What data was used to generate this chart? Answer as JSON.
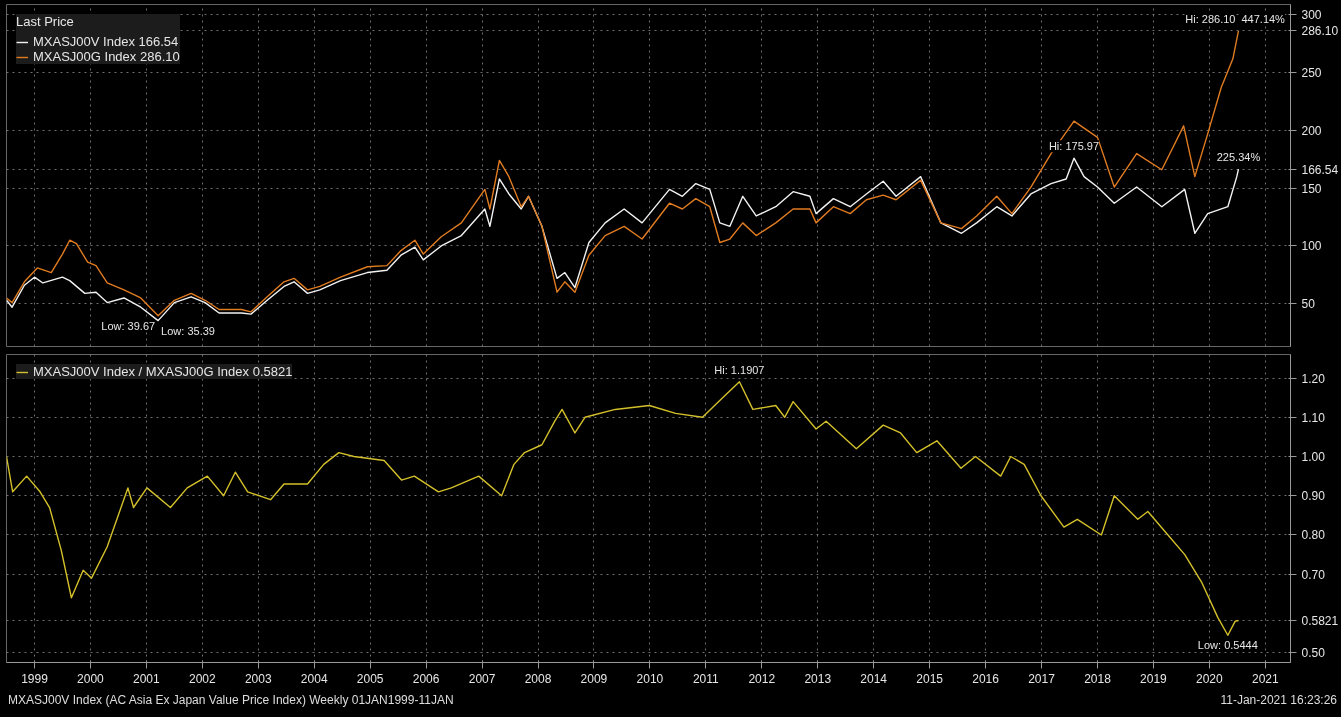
{
  "chart_data": [
    {
      "type": "line",
      "legend_title": "Last Price",
      "legend": "top left",
      "grid": true,
      "tick_labels": "y",
      "xlim": [
        1999.0,
        2021.95
      ],
      "xticks": [
        {
          "value": 1999.5,
          "label": null
        },
        {
          "value": 2000.5,
          "label": null
        },
        {
          "value": 2001.5,
          "label": null
        },
        {
          "value": 2002.5,
          "label": null
        },
        {
          "value": 2003.5,
          "label": null
        },
        {
          "value": 2004.5,
          "label": null
        },
        {
          "value": 2005.5,
          "label": null
        },
        {
          "value": 2006.5,
          "label": null
        },
        {
          "value": 2007.5,
          "label": null
        },
        {
          "value": 2008.5,
          "label": null
        },
        {
          "value": 2009.5,
          "label": null
        },
        {
          "value": 2010.5,
          "label": null
        },
        {
          "value": 2011.5,
          "label": null
        },
        {
          "value": 2012.5,
          "label": null
        },
        {
          "value": 2013.5,
          "label": null
        },
        {
          "value": 2014.5,
          "label": null
        },
        {
          "value": 2015.5,
          "label": null
        },
        {
          "value": 2016.5,
          "label": null
        },
        {
          "value": 2017.5,
          "label": null
        },
        {
          "value": 2018.5,
          "label": null
        },
        {
          "value": 2019.5,
          "label": null
        },
        {
          "value": 2020.5,
          "label": null
        },
        {
          "value": 2021.5,
          "label": null
        }
      ],
      "ylim": [
        13,
        309
      ],
      "yticks": [
        50,
        100,
        150,
        {
          "value": 166.54,
          "label": "166.54"
        },
        200,
        250,
        {
          "value": 286.1,
          "label": "286.10"
        },
        300
      ],
      "series": [
        {
          "name": "MXASJ00V Index 166.54",
          "color": "#f2f2f2",
          "x": [
            1999.0,
            1999.1,
            1999.32,
            1999.5,
            1999.65,
            2000.0,
            2000.13,
            2000.4,
            2000.6,
            2000.8,
            2001.1,
            2001.4,
            2001.71,
            2002.0,
            2002.3,
            2002.55,
            2002.8,
            2003.2,
            2003.37,
            2003.66,
            2003.96,
            2004.14,
            2004.38,
            2004.6,
            2004.97,
            2005.45,
            2005.8,
            2006.05,
            2006.3,
            2006.45,
            2006.77,
            2007.13,
            2007.55,
            2007.64,
            2007.81,
            2007.98,
            2008.2,
            2008.33,
            2008.57,
            2008.84,
            2008.98,
            2009.16,
            2009.41,
            2009.7,
            2010.04,
            2010.36,
            2010.85,
            2011.08,
            2011.32,
            2011.57,
            2011.75,
            2011.93,
            2012.16,
            2012.4,
            2012.75,
            2013.06,
            2013.36,
            2013.47,
            2013.78,
            2014.08,
            2014.37,
            2014.67,
            2014.9,
            2015.34,
            2015.7,
            2016.07,
            2016.34,
            2016.7,
            2016.97,
            2017.31,
            2017.67,
            2017.94,
            2018.08,
            2018.26,
            2018.5,
            2018.8,
            2019.2,
            2019.65,
            2020.06,
            2020.24,
            2020.47,
            2020.83,
            2020.99,
            2021.02
          ],
          "values": [
            53,
            47,
            66,
            73,
            68,
            73,
            70,
            59,
            60,
            51,
            55,
            47,
            35.39,
            51,
            56,
            51,
            42,
            42,
            41,
            53,
            65,
            69,
            59,
            62,
            70,
            77,
            79,
            92,
            99,
            88,
            100,
            109,
            132,
            117,
            158,
            145,
            132,
            143,
            117,
            72,
            77,
            64,
            103,
            120,
            132,
            120,
            149,
            143,
            154,
            149,
            120,
            117,
            143,
            126,
            134,
            147,
            143,
            128,
            141,
            134,
            145,
            156,
            143,
            160,
            120,
            111,
            120,
            134,
            126,
            145,
            154,
            158,
            175.97,
            160,
            151,
            137,
            151,
            134,
            149,
            111,
            128,
            134,
            160,
            166.54
          ]
        },
        {
          "name": "MXASJ00G Index 286.10",
          "color": "#e07b20",
          "x": [
            1999.0,
            1999.1,
            1999.32,
            1999.55,
            1999.8,
            2000.0,
            2000.13,
            2000.25,
            2000.45,
            2000.6,
            2000.8,
            2001.1,
            2001.4,
            2001.71,
            2002.0,
            2002.3,
            2002.55,
            2002.8,
            2003.2,
            2003.37,
            2003.66,
            2003.96,
            2004.14,
            2004.38,
            2004.6,
            2004.97,
            2005.45,
            2005.8,
            2006.05,
            2006.3,
            2006.45,
            2006.77,
            2007.13,
            2007.55,
            2007.64,
            2007.81,
            2007.98,
            2008.2,
            2008.33,
            2008.57,
            2008.84,
            2008.98,
            2009.16,
            2009.41,
            2009.7,
            2010.04,
            2010.36,
            2010.85,
            2011.08,
            2011.32,
            2011.57,
            2011.75,
            2011.93,
            2012.16,
            2012.4,
            2012.75,
            2013.06,
            2013.36,
            2013.47,
            2013.78,
            2014.08,
            2014.37,
            2014.67,
            2014.9,
            2015.34,
            2015.7,
            2016.07,
            2016.34,
            2016.7,
            2016.97,
            2017.31,
            2017.67,
            2018.08,
            2018.26,
            2018.5,
            2018.8,
            2019.2,
            2019.65,
            2020.04,
            2020.24,
            2020.47,
            2020.71,
            2020.92,
            2021.02
          ],
          "values": [
            55,
            51,
            69,
            81,
            77,
            93,
            105,
            102,
            86,
            83,
            68,
            62,
            55,
            39.67,
            53,
            59,
            53,
            45,
            45,
            43,
            56,
            69,
            72,
            62,
            65,
            73,
            82,
            83,
            96,
            105,
            93,
            108,
            120,
            149,
            132,
            174,
            160,
            134,
            143,
            117,
            60,
            69,
            60,
            92,
            109,
            117,
            106,
            137,
            132,
            141,
            134,
            103,
            106,
            120,
            109,
            120,
            132,
            132,
            120,
            134,
            128,
            140,
            144,
            140,
            157,
            120,
            115,
            126,
            143,
            128,
            151,
            180,
            208,
            202,
            194,
            151,
            180,
            166,
            204,
            160,
            197,
            237,
            262,
            286.1
          ]
        }
      ],
      "annotations": [
        {
          "text": "Hi: 286.10",
          "x": 2021.02,
          "y": 286.1
        },
        {
          "text": "447.14%",
          "x": 2021.02,
          "y": 286.1
        },
        {
          "text": "Hi: 175.97",
          "x": 2018.08,
          "y": 175.97
        },
        {
          "text": "225.34%",
          "x": 2021.02,
          "y": 166.54
        },
        {
          "text": "Low: 39.67",
          "x": 2001.71,
          "y": 39.67
        },
        {
          "text": "Low: 35.39",
          "x": 2001.71,
          "y": 35.39
        }
      ]
    },
    {
      "type": "line",
      "legend": "top left",
      "grid": true,
      "xlim": [
        1999.0,
        2021.95
      ],
      "xticks": [
        {
          "value": 1999.5,
          "label": "1999"
        },
        {
          "value": 2000.5,
          "label": "2000"
        },
        {
          "value": 2001.5,
          "label": "2001"
        },
        {
          "value": 2002.5,
          "label": "2002"
        },
        {
          "value": 2003.5,
          "label": "2003"
        },
        {
          "value": 2004.5,
          "label": "2004"
        },
        {
          "value": 2005.5,
          "label": "2005"
        },
        {
          "value": 2006.5,
          "label": "2006"
        },
        {
          "value": 2007.5,
          "label": "2007"
        },
        {
          "value": 2008.5,
          "label": "2008"
        },
        {
          "value": 2009.5,
          "label": "2009"
        },
        {
          "value": 2010.5,
          "label": "2010"
        },
        {
          "value": 2011.5,
          "label": "2011"
        },
        {
          "value": 2012.5,
          "label": "2012"
        },
        {
          "value": 2013.5,
          "label": "2013"
        },
        {
          "value": 2014.5,
          "label": "2014"
        },
        {
          "value": 2015.5,
          "label": "2015"
        },
        {
          "value": 2016.5,
          "label": "2016"
        },
        {
          "value": 2017.5,
          "label": "2017"
        },
        {
          "value": 2018.5,
          "label": "2018"
        },
        {
          "value": 2019.5,
          "label": "2019"
        },
        {
          "value": 2020.5,
          "label": "2020"
        },
        {
          "value": 2021.5,
          "label": "2021"
        }
      ],
      "ylim": [
        0.475,
        1.26
      ],
      "yticks": [
        {
          "value": 0.5,
          "label": "0.50"
        },
        {
          "value": 0.5821,
          "label": "0.5821"
        },
        {
          "value": 0.7,
          "label": "0.70"
        },
        {
          "value": 0.8,
          "label": "0.80"
        },
        {
          "value": 0.9,
          "label": "0.90"
        },
        {
          "value": 1.0,
          "label": "1.00"
        },
        {
          "value": 1.1,
          "label": "1.10"
        },
        {
          "value": 1.2,
          "label": "1.20"
        }
      ],
      "series": [
        {
          "name": "MXASJ00V Index / MXASJ00G Index 0.5821",
          "color": "#d4c02a",
          "x": [
            1999.0,
            1999.11,
            1999.36,
            1999.6,
            1999.77,
            1999.98,
            2000.16,
            2000.37,
            2000.52,
            2000.8,
            2001.17,
            2001.27,
            2001.51,
            2001.93,
            2002.23,
            2002.59,
            2002.88,
            2003.09,
            2003.31,
            2003.72,
            2003.96,
            2004.38,
            2004.67,
            2004.94,
            2005.21,
            2005.75,
            2006.06,
            2006.29,
            2006.72,
            2006.95,
            2007.44,
            2007.85,
            2008.07,
            2008.26,
            2008.57,
            2008.8,
            2008.93,
            2009.16,
            2009.34,
            2009.88,
            2010.49,
            2010.96,
            2011.44,
            2011.8,
            2012.1,
            2012.34,
            2012.75,
            2012.91,
            2013.06,
            2013.47,
            2013.65,
            2014.19,
            2014.67,
            2014.98,
            2015.27,
            2015.63,
            2016.06,
            2016.32,
            2016.77,
            2016.95,
            2017.19,
            2017.49,
            2017.9,
            2018.14,
            2018.57,
            2018.8,
            2019.22,
            2019.4,
            2019.76,
            2020.06,
            2020.36,
            2020.65,
            2020.83,
            2020.96,
            2021.02
          ],
          "values": [
            1.0,
            0.91,
            0.95,
            0.91,
            0.87,
            0.76,
            0.64,
            0.71,
            0.69,
            0.77,
            0.92,
            0.87,
            0.92,
            0.87,
            0.92,
            0.95,
            0.9,
            0.96,
            0.91,
            0.89,
            0.93,
            0.93,
            0.98,
            1.01,
            1.0,
            0.99,
            0.94,
            0.95,
            0.91,
            0.92,
            0.95,
            0.9,
            0.98,
            1.01,
            1.03,
            1.09,
            1.12,
            1.06,
            1.1,
            1.12,
            1.13,
            1.11,
            1.1,
            1.15,
            1.1907,
            1.12,
            1.13,
            1.1,
            1.14,
            1.07,
            1.09,
            1.02,
            1.08,
            1.06,
            1.01,
            1.04,
            0.97,
            1.0,
            0.95,
            1.0,
            0.98,
            0.9,
            0.82,
            0.84,
            0.8,
            0.9,
            0.84,
            0.86,
            0.8,
            0.75,
            0.68,
            0.59,
            0.5444,
            0.58,
            0.5821
          ]
        }
      ],
      "annotations": [
        {
          "text": "Hi: 1.1907",
          "x": 2012.1,
          "y": 1.1907
        },
        {
          "text": "Low: 0.5444",
          "x": 2020.83,
          "y": 0.5444
        },
        "MXASJ00V Index (AC Asia Ex Japan Value Price Index) Weekly 01JAN1999-11JAN",
        "11-Jan-2021 16:23:26"
      ]
    }
  ]
}
